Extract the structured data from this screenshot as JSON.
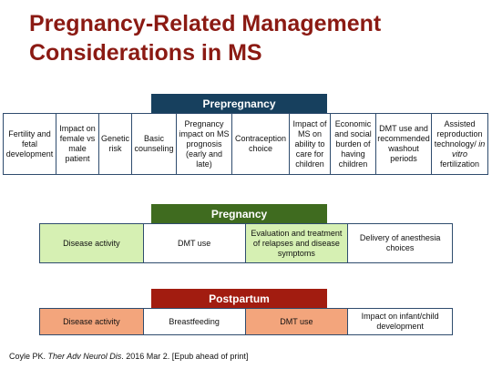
{
  "title": {
    "line1": "Pregnancy-Related Management",
    "line2": "Considerations in MS"
  },
  "colors": {
    "title": "#8b1a13",
    "prepregnancy_header": "#17405e",
    "pregnancy_header": "#3f6b1f",
    "postpartum_header": "#a21c10",
    "pregnancy_green_fill": "#d6f0b3",
    "postpartum_orange_fill": "#f3a57c",
    "border": "#2f4c6e"
  },
  "prepregnancy": {
    "header": "Prepregnancy",
    "cells": [
      "Fertility and fetal development",
      "Impact on female vs male patient",
      "Genetic risk",
      "Basic counseling",
      "Pregnancy impact on MS prognosis (early and late)",
      "Contraception choice",
      "Impact of MS on ability to care for children",
      "Economic and social burden of having children",
      "DMT use and recommended washout periods",
      "Assisted reproduction technology/",
      "in vitro",
      "fertilization"
    ]
  },
  "pregnancy": {
    "header": "Pregnancy",
    "cells": [
      "Disease activity",
      "DMT use",
      "Evaluation and treatment of relapses and disease symptoms",
      "Delivery of anesthesia choices"
    ]
  },
  "postpartum": {
    "header": "Postpartum",
    "cells": [
      "Disease activity",
      "Breastfeeding",
      "DMT use",
      "Impact on infant/child development"
    ]
  },
  "citation": {
    "author": "Coyle PK.",
    "journal": "Ther Adv Neurol Dis",
    "rest": ". 2016 Mar 2. [Epub ahead of print]"
  }
}
